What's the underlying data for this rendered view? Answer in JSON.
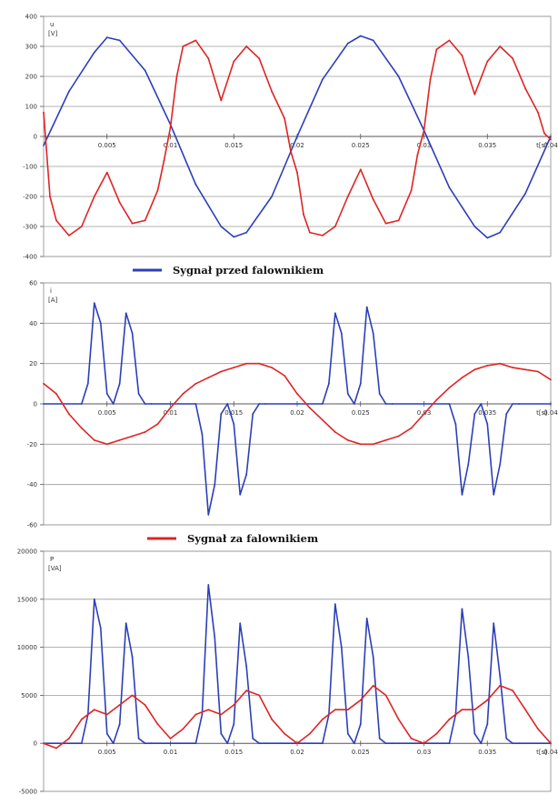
{
  "legend": [
    {
      "label": "Sygnał przed falownikiem",
      "color": "#2b3fb8"
    },
    {
      "label": "Sygnał za falownikiem",
      "color": "#e02323"
    }
  ],
  "chart_data": [
    {
      "type": "line",
      "quantity_label": "u",
      "unit_label": "[V]",
      "time_unit_label": "t[s]",
      "ylim": [
        -400,
        400
      ],
      "xlim": [
        0,
        0.04
      ],
      "y_ticks": [
        "400",
        "300",
        "200",
        "100",
        "0",
        "-100",
        "-200",
        "-300",
        "-400"
      ],
      "x_ticks": [
        "0.005",
        "0.01",
        "0.015",
        "0.02",
        "0.025",
        "0.03",
        "0.035",
        "0.04"
      ],
      "grid": true,
      "series": [
        {
          "name": "Sygnał przed falownikiem",
          "color": "#2b3fb8",
          "x": [
            0,
            0.002,
            0.004,
            0.005,
            0.006,
            0.008,
            0.01,
            0.012,
            0.014,
            0.015,
            0.016,
            0.018,
            0.02,
            0.022,
            0.024,
            0.025,
            0.026,
            0.028,
            0.03,
            0.032,
            0.034,
            0.035,
            0.036,
            0.038,
            0.04
          ],
          "y": [
            -30,
            150,
            280,
            330,
            320,
            220,
            40,
            -160,
            -300,
            -335,
            -320,
            -200,
            0,
            190,
            310,
            335,
            320,
            200,
            20,
            -170,
            -300,
            -338,
            -320,
            -190,
            0
          ]
        },
        {
          "name": "Sygnał za falownikiem",
          "color": "#e02323",
          "x": [
            0,
            0.0005,
            0.001,
            0.002,
            0.003,
            0.004,
            0.005,
            0.006,
            0.007,
            0.008,
            0.009,
            0.0095,
            0.01,
            0.0105,
            0.011,
            0.012,
            0.013,
            0.014,
            0.015,
            0.016,
            0.017,
            0.018,
            0.019,
            0.0195,
            0.02,
            0.0205,
            0.021,
            0.022,
            0.023,
            0.024,
            0.025,
            0.026,
            0.027,
            0.028,
            0.029,
            0.0295,
            0.03,
            0.0305,
            0.031,
            0.032,
            0.033,
            0.034,
            0.035,
            0.036,
            0.037,
            0.038,
            0.039,
            0.0395,
            0.04
          ],
          "y": [
            80,
            -200,
            -280,
            -330,
            -300,
            -200,
            -120,
            -220,
            -290,
            -280,
            -180,
            -80,
            30,
            200,
            300,
            320,
            260,
            120,
            250,
            300,
            260,
            150,
            60,
            -50,
            -120,
            -260,
            -320,
            -330,
            -300,
            -200,
            -110,
            -210,
            -290,
            -280,
            -180,
            -60,
            20,
            190,
            290,
            320,
            270,
            140,
            250,
            300,
            260,
            160,
            80,
            10,
            -10
          ]
        }
      ]
    },
    {
      "type": "line",
      "quantity_label": "i",
      "unit_label": "[A]",
      "time_unit_label": "t[s]",
      "ylim": [
        -60,
        60
      ],
      "xlim": [
        0,
        0.04
      ],
      "y_ticks": [
        "60",
        "40",
        "20",
        "0",
        "-20",
        "-40",
        "-60"
      ],
      "x_ticks": [
        "0.005",
        "0.01",
        "0.015",
        "0.02",
        "0.025",
        "0.03",
        "0.035",
        "0.04"
      ],
      "grid": true,
      "series": [
        {
          "name": "Sygnał przed falownikiem",
          "color": "#2b3fb8",
          "x": [
            0,
            0.003,
            0.0035,
            0.004,
            0.0045,
            0.005,
            0.0055,
            0.006,
            0.0065,
            0.007,
            0.0075,
            0.008,
            0.0085,
            0.012,
            0.0125,
            0.013,
            0.0135,
            0.014,
            0.0145,
            0.015,
            0.0155,
            0.016,
            0.0165,
            0.017,
            0.0175,
            0.022,
            0.0225,
            0.023,
            0.0235,
            0.024,
            0.0245,
            0.025,
            0.0255,
            0.026,
            0.0265,
            0.027,
            0.0275,
            0.032,
            0.0325,
            0.033,
            0.0335,
            0.034,
            0.0345,
            0.035,
            0.0355,
            0.036,
            0.0365,
            0.037,
            0.0375,
            0.04
          ],
          "y": [
            0,
            0,
            10,
            50,
            40,
            5,
            0,
            10,
            45,
            35,
            5,
            0,
            0,
            0,
            -15,
            -55,
            -40,
            -5,
            0,
            -10,
            -45,
            -35,
            -5,
            0,
            0,
            0,
            10,
            45,
            35,
            5,
            0,
            10,
            48,
            35,
            5,
            0,
            0,
            0,
            -10,
            -45,
            -30,
            -5,
            0,
            -10,
            -45,
            -30,
            -5,
            0,
            0,
            0
          ]
        },
        {
          "name": "Sygnał za falownikiem",
          "color": "#e02323",
          "x": [
            0,
            0.001,
            0.002,
            0.003,
            0.004,
            0.005,
            0.006,
            0.007,
            0.008,
            0.009,
            0.01,
            0.011,
            0.012,
            0.013,
            0.014,
            0.015,
            0.016,
            0.017,
            0.018,
            0.019,
            0.02,
            0.021,
            0.022,
            0.023,
            0.024,
            0.025,
            0.026,
            0.027,
            0.028,
            0.029,
            0.03,
            0.031,
            0.032,
            0.033,
            0.034,
            0.035,
            0.036,
            0.037,
            0.038,
            0.039,
            0.04
          ],
          "y": [
            10,
            5,
            -5,
            -12,
            -18,
            -20,
            -18,
            -16,
            -14,
            -10,
            -2,
            5,
            10,
            13,
            16,
            18,
            20,
            20,
            18,
            14,
            5,
            -2,
            -8,
            -14,
            -18,
            -20,
            -20,
            -18,
            -16,
            -12,
            -5,
            2,
            8,
            13,
            17,
            19,
            20,
            18,
            17,
            16,
            12
          ]
        }
      ]
    },
    {
      "type": "line",
      "quantity_label": "P",
      "unit_label": "[VA]",
      "time_unit_label": "t[s]",
      "ylim": [
        -5000,
        20000
      ],
      "xlim": [
        0,
        0.04
      ],
      "y_ticks": [
        "20000",
        "15000",
        "10000",
        "5000",
        "0",
        "-5000"
      ],
      "x_ticks": [
        "0.005",
        "0.01",
        "0.015",
        "0.02",
        "0.025",
        "0.03",
        "0.035",
        "0.04"
      ],
      "grid": true,
      "series": [
        {
          "name": "Sygnał przed falownikiem",
          "color": "#2b3fb8",
          "x": [
            0,
            0.003,
            0.0035,
            0.004,
            0.0045,
            0.005,
            0.0055,
            0.006,
            0.0065,
            0.007,
            0.0075,
            0.008,
            0.0085,
            0.012,
            0.0125,
            0.013,
            0.0135,
            0.014,
            0.0145,
            0.015,
            0.0155,
            0.016,
            0.0165,
            0.017,
            0.0175,
            0.022,
            0.0225,
            0.023,
            0.0235,
            0.024,
            0.0245,
            0.025,
            0.0255,
            0.026,
            0.0265,
            0.027,
            0.0275,
            0.032,
            0.0325,
            0.033,
            0.0335,
            0.034,
            0.0345,
            0.035,
            0.0355,
            0.036,
            0.0365,
            0.037,
            0.0375,
            0.04
          ],
          "y": [
            0,
            0,
            3000,
            15000,
            12000,
            1000,
            0,
            2000,
            12500,
            9000,
            500,
            0,
            0,
            0,
            3000,
            16500,
            11000,
            1000,
            0,
            2000,
            12500,
            8000,
            500,
            0,
            0,
            0,
            3000,
            14500,
            10000,
            1000,
            0,
            2000,
            13000,
            9000,
            500,
            0,
            0,
            0,
            3000,
            14000,
            9000,
            1000,
            0,
            2000,
            12500,
            7000,
            500,
            0,
            0,
            0
          ]
        },
        {
          "name": "Sygnał za falownikiem",
          "color": "#e02323",
          "x": [
            0,
            0.001,
            0.002,
            0.003,
            0.004,
            0.005,
            0.006,
            0.007,
            0.008,
            0.009,
            0.01,
            0.011,
            0.012,
            0.013,
            0.014,
            0.015,
            0.016,
            0.017,
            0.018,
            0.019,
            0.02,
            0.021,
            0.022,
            0.023,
            0.024,
            0.025,
            0.026,
            0.027,
            0.028,
            0.029,
            0.03,
            0.031,
            0.032,
            0.033,
            0.034,
            0.035,
            0.036,
            0.037,
            0.038,
            0.039,
            0.04
          ],
          "y": [
            0,
            -500,
            500,
            2500,
            3500,
            3000,
            4000,
            5000,
            4000,
            2000,
            500,
            1500,
            3000,
            3500,
            3000,
            4000,
            5500,
            5000,
            2500,
            1000,
            0,
            1000,
            2500,
            3500,
            3500,
            4500,
            6000,
            5000,
            2500,
            500,
            0,
            1000,
            2500,
            3500,
            3500,
            4500,
            6000,
            5500,
            3500,
            1500,
            0
          ]
        }
      ]
    }
  ]
}
